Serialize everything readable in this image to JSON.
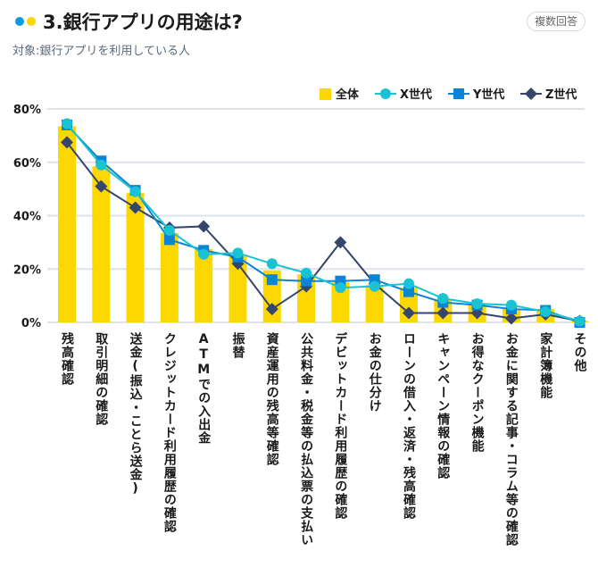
{
  "header": {
    "title": "3.銀行アプリの用途は?",
    "badge": "複数回答",
    "subtitle": "対象:銀行アプリを利用している人"
  },
  "colors": {
    "dot_blue": "#0a9be8",
    "dot_yellow": "#fcd700",
    "bar": "#fcd700",
    "x_gen": "#19c3d3",
    "y_gen": "#0a84d6",
    "z_gen": "#34466b",
    "grid": "#dde3e8"
  },
  "chart_data": {
    "type": "bar",
    "title": "3.銀行アプリの用途は?",
    "xlabel": "",
    "ylabel": "",
    "ylim": [
      0,
      80
    ],
    "yticks": [
      "0%",
      "20%",
      "40%",
      "60%",
      "80%"
    ],
    "ytick_values": [
      0,
      20,
      40,
      60,
      80
    ],
    "grid": true,
    "legend_position": "top-right",
    "categories": [
      "残高確認",
      "取引明細の確認",
      "送金(振込・ことら送金)",
      "クレジットカード利用履歴の確認",
      "ATMでの入出金",
      "振替",
      "資産運用の残高等確認",
      "公共料金・税金等の払込票の支払い",
      "デビットカード利用履歴の確認",
      "お金の仕分け",
      "ローンの借入・返済・残高確認",
      "キャンペーン情報の確認",
      "お得なクーポン機能",
      "お金に関する記事・コラム等の確認",
      "家計簿機能",
      "その他"
    ],
    "series": [
      {
        "name": "全体",
        "kind": "bar",
        "marker": "square",
        "values": [
          73.5,
          58.5,
          48.5,
          33.5,
          27.5,
          25,
          19.5,
          18,
          15,
          14,
          13,
          8.5,
          7,
          5,
          5,
          0.5
        ]
      },
      {
        "name": "X世代",
        "kind": "line",
        "marker": "circle",
        "values": [
          74.5,
          59,
          49,
          34.5,
          25.5,
          26,
          22,
          18.5,
          13,
          13.5,
          14.5,
          9,
          7,
          6.5,
          4,
          0.5
        ]
      },
      {
        "name": "Y世代",
        "kind": "line",
        "marker": "square",
        "values": [
          74,
          60.5,
          49.5,
          31,
          27,
          24.5,
          16,
          15.5,
          15.5,
          16,
          11.5,
          7.5,
          6.5,
          5,
          4.5,
          0
        ]
      },
      {
        "name": "Z世代",
        "kind": "line",
        "marker": "diamond",
        "values": [
          67.5,
          51,
          43,
          35.5,
          36,
          22,
          5,
          13.5,
          30,
          14.5,
          3.5,
          3.5,
          3.5,
          1.5,
          3,
          0.5
        ]
      }
    ]
  }
}
